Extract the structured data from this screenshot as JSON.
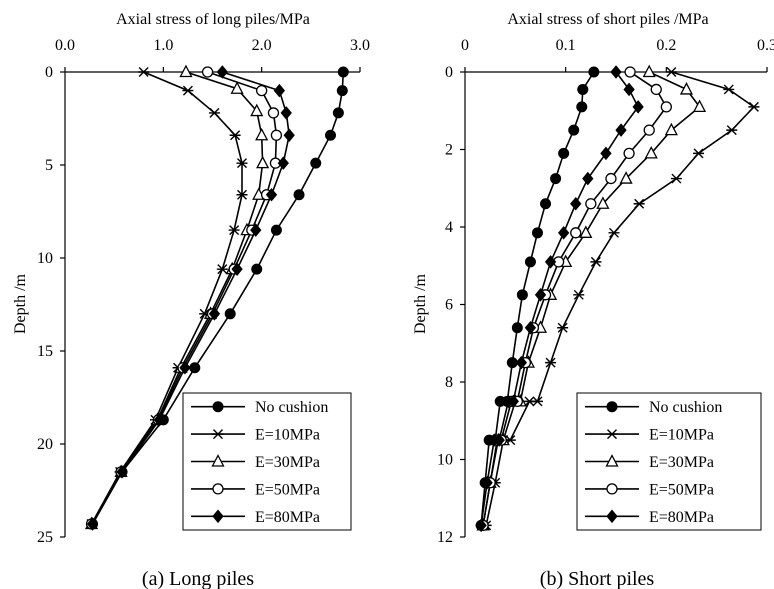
{
  "chart_data": [
    {
      "type": "line",
      "title": "",
      "caption": "(a) Long piles",
      "xlabel": "Axial stress of long piles/MPa",
      "ylabel": "Depth /m",
      "xlim": [
        0,
        3.0
      ],
      "ylim": [
        0,
        25
      ],
      "x_ticks": [
        "0.0",
        "1.0",
        "2.0",
        "3.0"
      ],
      "x_tick_values": [
        0,
        1,
        2,
        3
      ],
      "y_ticks": [
        "0",
        "5",
        "10",
        "15",
        "20",
        "25"
      ],
      "y_tick_values": [
        0,
        5,
        10,
        15,
        20,
        25
      ],
      "x_axis_position": "top",
      "y_inverted": true,
      "grid": false,
      "legend_position": "bottom-right",
      "series": [
        {
          "name": "No cushion",
          "marker": "filled-circle",
          "x": [
            2.83,
            2.82,
            2.78,
            2.7,
            2.55,
            2.38,
            2.15,
            1.95,
            1.68,
            1.32,
            1.0,
            0.58,
            0.28
          ],
          "y": [
            0,
            1.0,
            2.2,
            3.4,
            4.9,
            6.6,
            8.5,
            10.6,
            13.0,
            15.9,
            18.7,
            21.5,
            24.3
          ]
        },
        {
          "name": "E=10MPa",
          "marker": "asterisk",
          "x": [
            0.8,
            1.25,
            1.52,
            1.73,
            1.8,
            1.8,
            1.72,
            1.6,
            1.42,
            1.15,
            0.92,
            0.56,
            0.27
          ],
          "y": [
            0,
            1.0,
            2.2,
            3.4,
            4.9,
            6.6,
            8.5,
            10.6,
            13.0,
            15.9,
            18.7,
            21.5,
            24.3
          ]
        },
        {
          "name": "E=30MPa",
          "marker": "open-triangle",
          "x": [
            1.23,
            1.75,
            1.95,
            2.0,
            2.01,
            1.97,
            1.85,
            1.7,
            1.48,
            1.18,
            0.94,
            0.57,
            0.27
          ],
          "y": [
            0,
            0.9,
            2.1,
            3.4,
            4.9,
            6.6,
            8.5,
            10.6,
            13.0,
            15.9,
            18.7,
            21.5,
            24.3
          ]
        },
        {
          "name": "E=50MPa",
          "marker": "open-circle",
          "x": [
            1.45,
            2.0,
            2.12,
            2.15,
            2.14,
            2.05,
            1.9,
            1.72,
            1.5,
            1.2,
            0.95,
            0.57,
            0.27
          ],
          "y": [
            0,
            1.0,
            2.2,
            3.4,
            4.9,
            6.6,
            8.5,
            10.6,
            13.0,
            15.9,
            18.7,
            21.5,
            24.3
          ]
        },
        {
          "name": "E=80MPa",
          "marker": "filled-diamond",
          "x": [
            1.6,
            2.18,
            2.25,
            2.28,
            2.22,
            2.1,
            1.94,
            1.75,
            1.52,
            1.22,
            0.96,
            0.58,
            0.28
          ],
          "y": [
            0,
            1.0,
            2.2,
            3.4,
            4.9,
            6.6,
            8.5,
            10.6,
            13.0,
            15.9,
            18.7,
            21.5,
            24.3
          ]
        }
      ]
    },
    {
      "type": "line",
      "title": "",
      "caption": "(b) Short piles",
      "xlabel": "Axial stress of short piles /MPa",
      "ylabel": "Depth /m",
      "xlim": [
        0,
        0.3
      ],
      "ylim": [
        0,
        12
      ],
      "x_ticks": [
        "0",
        "0.1",
        "0.2",
        "0.3"
      ],
      "x_tick_values": [
        0,
        0.1,
        0.2,
        0.3
      ],
      "y_ticks": [
        "0",
        "2",
        "4",
        "6",
        "8",
        "10",
        "12"
      ],
      "y_tick_values": [
        0,
        2,
        4,
        6,
        8,
        10,
        12
      ],
      "x_axis_position": "top",
      "y_inverted": true,
      "grid": false,
      "legend_position": "bottom-right",
      "series": [
        {
          "name": "No cushion",
          "marker": "filled-circle",
          "x": [
            0.128,
            0.117,
            0.116,
            0.108,
            0.098,
            0.09,
            0.08,
            0.072,
            0.065,
            0.057,
            0.052,
            0.047,
            0.042,
            0.035,
            0.03,
            0.024,
            0.02,
            0.016
          ],
          "y": [
            0,
            0.45,
            0.9,
            1.5,
            2.1,
            2.75,
            3.4,
            4.15,
            4.9,
            5.75,
            6.6,
            7.5,
            8.5,
            8.5,
            9.5,
            9.5,
            10.6,
            11.7
          ]
        },
        {
          "name": "E=10MPa",
          "marker": "asterisk",
          "x": [
            0.205,
            0.262,
            0.287,
            0.265,
            0.232,
            0.21,
            0.173,
            0.148,
            0.13,
            0.113,
            0.097,
            0.085,
            0.072,
            0.064,
            0.045,
            0.038,
            0.03,
            0.021
          ],
          "y": [
            0,
            0.45,
            0.9,
            1.5,
            2.1,
            2.75,
            3.4,
            4.15,
            4.9,
            5.75,
            6.6,
            7.5,
            8.5,
            8.5,
            9.5,
            9.5,
            10.6,
            11.7
          ]
        },
        {
          "name": "E=30MPa",
          "marker": "open-triangle",
          "x": [
            0.183,
            0.22,
            0.233,
            0.205,
            0.185,
            0.16,
            0.137,
            0.12,
            0.1,
            0.085,
            0.075,
            0.063,
            0.055,
            0.05,
            0.038,
            0.033,
            0.025,
            0.018
          ],
          "y": [
            0,
            0.45,
            0.9,
            1.5,
            2.1,
            2.75,
            3.4,
            4.15,
            4.9,
            5.75,
            6.6,
            7.5,
            8.5,
            8.5,
            9.5,
            9.5,
            10.6,
            11.7
          ]
        },
        {
          "name": "E=50MPa",
          "marker": "open-circle",
          "x": [
            0.164,
            0.19,
            0.2,
            0.183,
            0.163,
            0.145,
            0.125,
            0.11,
            0.093,
            0.08,
            0.068,
            0.06,
            0.052,
            0.046,
            0.036,
            0.032,
            0.025,
            0.018
          ],
          "y": [
            0,
            0.45,
            0.9,
            1.5,
            2.1,
            2.75,
            3.4,
            4.15,
            4.9,
            5.75,
            6.6,
            7.5,
            8.5,
            8.5,
            9.5,
            9.5,
            10.6,
            11.7
          ]
        },
        {
          "name": "E=80MPa",
          "marker": "filled-diamond",
          "x": [
            0.15,
            0.163,
            0.172,
            0.155,
            0.14,
            0.122,
            0.11,
            0.098,
            0.085,
            0.075,
            0.065,
            0.056,
            0.048,
            0.043,
            0.034,
            0.029,
            0.022,
            0.016
          ],
          "y": [
            0,
            0.45,
            0.9,
            1.5,
            2.1,
            2.75,
            3.4,
            4.15,
            4.9,
            5.75,
            6.6,
            7.5,
            8.5,
            8.5,
            9.5,
            9.5,
            10.6,
            11.7
          ]
        }
      ]
    }
  ]
}
